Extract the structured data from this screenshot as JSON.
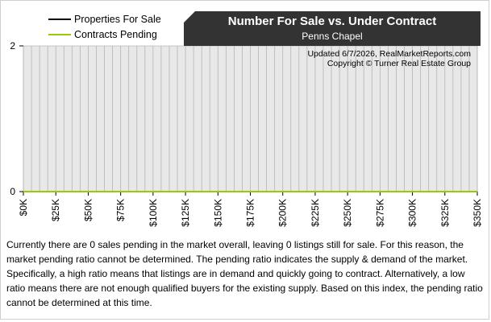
{
  "title": "Number For Sale vs. Under Contract",
  "subtitle": "Penns Chapel",
  "updated": "Updated 6/7/2026, RealMarketReports.com",
  "copyright": "Copyright © Turner Real Estate Group",
  "legend": [
    {
      "label": "Properties For Sale",
      "color": "#000000"
    },
    {
      "label": "Contracts Pending",
      "color": "#99cc00"
    }
  ],
  "summary": "Currently there are 0 sales pending in the market overall, leaving 0 listings still for sale.  For this reason, the market pending ratio cannot be determined.  The pending ratio indicates the supply & demand of the market.  Specifically, a high ratio means that listings are in demand and quickly going to contract.  Alternatively, a low ratio means there are not enough qualified buyers for the existing supply.  Based on this index, the pending ratio cannot be determined at this time.",
  "colors": {
    "plot_background": "#e8e8e8",
    "gridline": "#b4b4b4",
    "title_background": "#333333"
  },
  "chart_data": {
    "type": "line",
    "x": [
      "$0K",
      "$25K",
      "$50K",
      "$75K",
      "$100K",
      "$125K",
      "$150K",
      "$175K",
      "$200K",
      "$225K",
      "$250K",
      "$275K",
      "$300K",
      "$325K",
      "$350K"
    ],
    "series": [
      {
        "name": "Properties For Sale",
        "values": [
          0,
          0,
          0,
          0,
          0,
          0,
          0,
          0,
          0,
          0,
          0,
          0,
          0,
          0,
          0
        ]
      },
      {
        "name": "Contracts Pending",
        "values": [
          0,
          0,
          0,
          0,
          0,
          0,
          0,
          0,
          0,
          0,
          0,
          0,
          0,
          0,
          0
        ]
      }
    ],
    "ylim": [
      0,
      2
    ],
    "yticks": [
      "0",
      "2"
    ],
    "grid": true,
    "legend_position": "top-left"
  }
}
